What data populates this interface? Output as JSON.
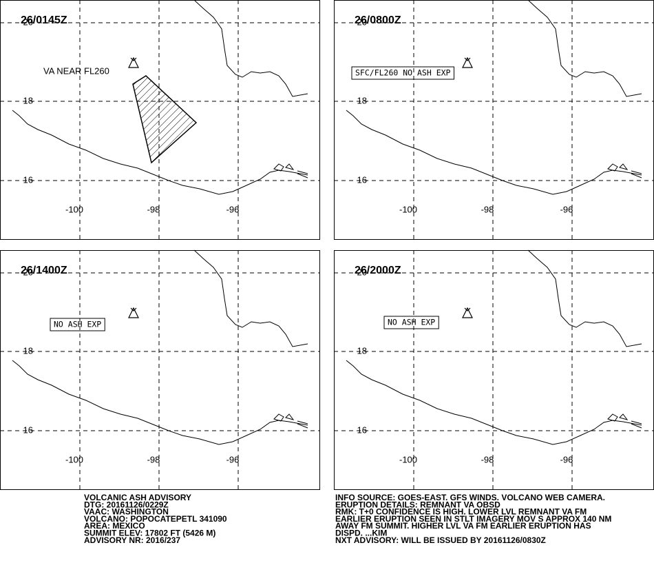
{
  "panels": [
    {
      "time": "26/0145Z",
      "label": "VA NEAR FL260"
    },
    {
      "time": "26/0800Z",
      "label": "SFC/FL260 NO ASH EXP"
    },
    {
      "time": "26/1400Z",
      "label": "NO ASH EXP"
    },
    {
      "time": "26/2000Z",
      "label": "NO ASH EXP"
    }
  ],
  "axes": {
    "lat_labels": [
      "20",
      "18",
      "16"
    ],
    "lon_labels": [
      "-100",
      "-98",
      "-96"
    ]
  },
  "footer": {
    "left": [
      "VOLCANIC ASH ADVISORY",
      "DTG: 20161126/0229Z",
      "VAAC: WASHINGTON",
      "VOLCANO: POPOCATEPETL 341090",
      "AREA: MEXICO",
      "SUMMIT ELEV: 17802 FT (5426 M)",
      "ADVISORY NR: 2016/237"
    ],
    "right": [
      "INFO SOURCE: GOES-EAST. GFS WINDS. VOLCANO WEB CAMERA.",
      "ERUPTION DETAILS: REMNANT VA OBSD",
      "RMK: T+0 CONFIDENCE IS HIGH. LOWER LVL REMNANT VA FM",
      "EARLIER ERUPTION SEEN IN STLT IMAGERY MOV S APPROX 140 NM",
      "AWAY FM SUMMIT. HIGHER LVL VA FM EARLIER ERUPTION HAS",
      "DISPD. ...KIM",
      "NXT ADVISORY: WILL BE ISSUED BY 20161126/0830Z"
    ]
  }
}
